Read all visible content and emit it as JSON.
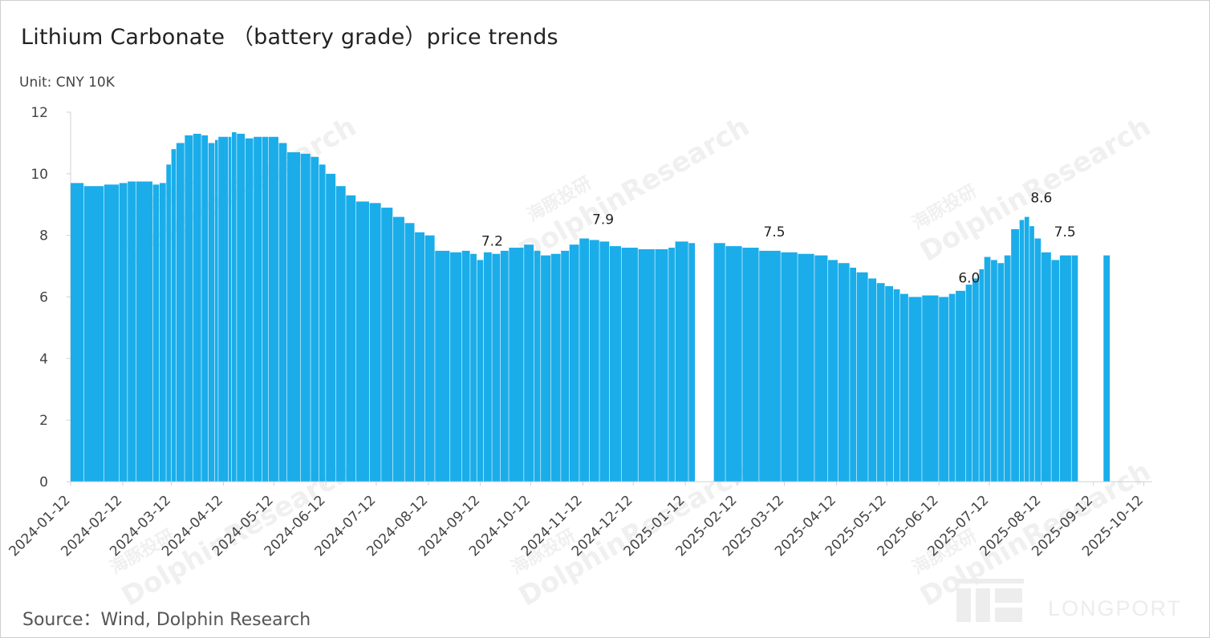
{
  "title": "Lithium Carbonate （battery grade）price trends",
  "unit_label": "Unit: CNY 10K",
  "source": "Source：Wind, Dolphin Research",
  "watermark": {
    "brand": "DolphinResearch",
    "cn": "海豚投研",
    "logo": "LONGPORT"
  },
  "colors": {
    "bar": "#1AADEA",
    "axis": "#d0d0d0",
    "text": "#222222"
  },
  "chart_data": {
    "type": "bar",
    "title": "Lithium Carbonate （battery grade）price trends",
    "ylabel": "Unit: CNY 10K",
    "ylim": [
      0,
      12
    ],
    "yticks": [
      "0",
      "2",
      "4",
      "6",
      "8",
      "10",
      "12"
    ],
    "grid": false,
    "legend": "none",
    "xtick_labels": [
      "2024-01-12",
      "2024-02-12",
      "2024-03-12",
      "2024-04-12",
      "2024-05-12",
      "2024-06-12",
      "2024-07-12",
      "2024-08-12",
      "2024-09-12",
      "2024-10-12",
      "2024-11-12",
      "2024-12-12",
      "2025-01-12",
      "2025-02-12",
      "2025-03-12",
      "2025-04-12",
      "2025-05-12",
      "2025-06-12",
      "2025-07-12",
      "2025-08-12",
      "2025-09-12",
      "2025-10-12"
    ],
    "annotations": [
      {
        "x": "2024-09-19",
        "y": 7.2,
        "label": "7.2"
      },
      {
        "x": "2024-11-24",
        "y": 7.9,
        "label": "7.9"
      },
      {
        "x": "2025-03-06",
        "y": 7.5,
        "label": "7.5"
      },
      {
        "x": "2025-06-30",
        "y": 6.0,
        "label": "6.0"
      },
      {
        "x": "2025-08-12",
        "y": 8.6,
        "label": "8.6"
      },
      {
        "x": "2025-08-26",
        "y": 7.5,
        "label": "7.5"
      }
    ],
    "points": [
      [
        "2024-01-12",
        9.7
      ],
      [
        "2024-01-20",
        9.6
      ],
      [
        "2024-02-01",
        9.65
      ],
      [
        "2024-02-10",
        9.7
      ],
      [
        "2024-02-15",
        9.75
      ],
      [
        "2024-02-20",
        9.75
      ],
      [
        "2024-03-01",
        9.65
      ],
      [
        "2024-03-05",
        9.7
      ],
      [
        "2024-03-09",
        10.3
      ],
      [
        "2024-03-12",
        10.8
      ],
      [
        "2024-03-15",
        11.0
      ],
      [
        "2024-03-20",
        11.25
      ],
      [
        "2024-03-25",
        11.3
      ],
      [
        "2024-03-30",
        11.25
      ],
      [
        "2024-04-03",
        11.0
      ],
      [
        "2024-04-07",
        11.1
      ],
      [
        "2024-04-09",
        11.2
      ],
      [
        "2024-04-15",
        11.2
      ],
      [
        "2024-04-17",
        11.35
      ],
      [
        "2024-04-20",
        11.3
      ],
      [
        "2024-04-25",
        11.15
      ],
      [
        "2024-04-30",
        11.2
      ],
      [
        "2024-05-05",
        11.2
      ],
      [
        "2024-05-09",
        11.2
      ],
      [
        "2024-05-15",
        11.0
      ],
      [
        "2024-05-20",
        10.7
      ],
      [
        "2024-05-28",
        10.65
      ],
      [
        "2024-06-03",
        10.55
      ],
      [
        "2024-06-08",
        10.3
      ],
      [
        "2024-06-12",
        10.0
      ],
      [
        "2024-06-18",
        9.6
      ],
      [
        "2024-06-24",
        9.3
      ],
      [
        "2024-06-30",
        9.1
      ],
      [
        "2024-07-08",
        9.05
      ],
      [
        "2024-07-15",
        8.9
      ],
      [
        "2024-07-22",
        8.6
      ],
      [
        "2024-07-29",
        8.4
      ],
      [
        "2024-08-04",
        8.1
      ],
      [
        "2024-08-10",
        8.0
      ],
      [
        "2024-08-16",
        7.5
      ],
      [
        "2024-08-25",
        7.45
      ],
      [
        "2024-09-01",
        7.5
      ],
      [
        "2024-09-06",
        7.4
      ],
      [
        "2024-09-10",
        7.2
      ],
      [
        "2024-09-14",
        7.45
      ],
      [
        "2024-09-19",
        7.4
      ],
      [
        "2024-09-24",
        7.5
      ],
      [
        "2024-09-29",
        7.6
      ],
      [
        "2024-10-08",
        7.7
      ],
      [
        "2024-10-14",
        7.5
      ],
      [
        "2024-10-18",
        7.35
      ],
      [
        "2024-10-24",
        7.4
      ],
      [
        "2024-10-30",
        7.5
      ],
      [
        "2024-11-04",
        7.7
      ],
      [
        "2024-11-10",
        7.9
      ],
      [
        "2024-11-16",
        7.85
      ],
      [
        "2024-11-22",
        7.8
      ],
      [
        "2024-11-28",
        7.65
      ],
      [
        "2024-12-05",
        7.6
      ],
      [
        "2024-12-15",
        7.55
      ],
      [
        "2024-12-25",
        7.55
      ],
      [
        "2025-01-02",
        7.6
      ],
      [
        "2025-01-06",
        7.8
      ],
      [
        "2025-01-14",
        7.75
      ],
      [
        "2025-01-29",
        7.75
      ],
      [
        "2025-02-05",
        7.65
      ],
      [
        "2025-02-15",
        7.6
      ],
      [
        "2025-02-25",
        7.5
      ],
      [
        "2025-03-10",
        7.45
      ],
      [
        "2025-03-20",
        7.4
      ],
      [
        "2025-03-30",
        7.35
      ],
      [
        "2025-04-07",
        7.2
      ],
      [
        "2025-04-13",
        7.1
      ],
      [
        "2025-04-20",
        6.95
      ],
      [
        "2025-04-24",
        6.8
      ],
      [
        "2025-05-01",
        6.6
      ],
      [
        "2025-05-06",
        6.45
      ],
      [
        "2025-05-11",
        6.35
      ],
      [
        "2025-05-16",
        6.25
      ],
      [
        "2025-05-20",
        6.1
      ],
      [
        "2025-05-25",
        6.0
      ],
      [
        "2025-06-02",
        6.05
      ],
      [
        "2025-06-12",
        6.0
      ],
      [
        "2025-06-18",
        6.1
      ],
      [
        "2025-06-22",
        6.2
      ],
      [
        "2025-06-28",
        6.4
      ],
      [
        "2025-07-02",
        6.6
      ],
      [
        "2025-07-06",
        6.9
      ],
      [
        "2025-07-09",
        7.3
      ],
      [
        "2025-07-13",
        7.2
      ],
      [
        "2025-07-17",
        7.1
      ],
      [
        "2025-07-21",
        7.35
      ],
      [
        "2025-07-25",
        8.2
      ],
      [
        "2025-07-30",
        8.5
      ],
      [
        "2025-08-02",
        8.6
      ],
      [
        "2025-08-05",
        8.3
      ],
      [
        "2025-08-08",
        7.9
      ],
      [
        "2025-08-12",
        7.45
      ],
      [
        "2025-08-18",
        7.2
      ],
      [
        "2025-08-23",
        7.35
      ],
      [
        "2025-08-30",
        7.35
      ],
      [
        "2025-09-18",
        7.35
      ]
    ]
  }
}
